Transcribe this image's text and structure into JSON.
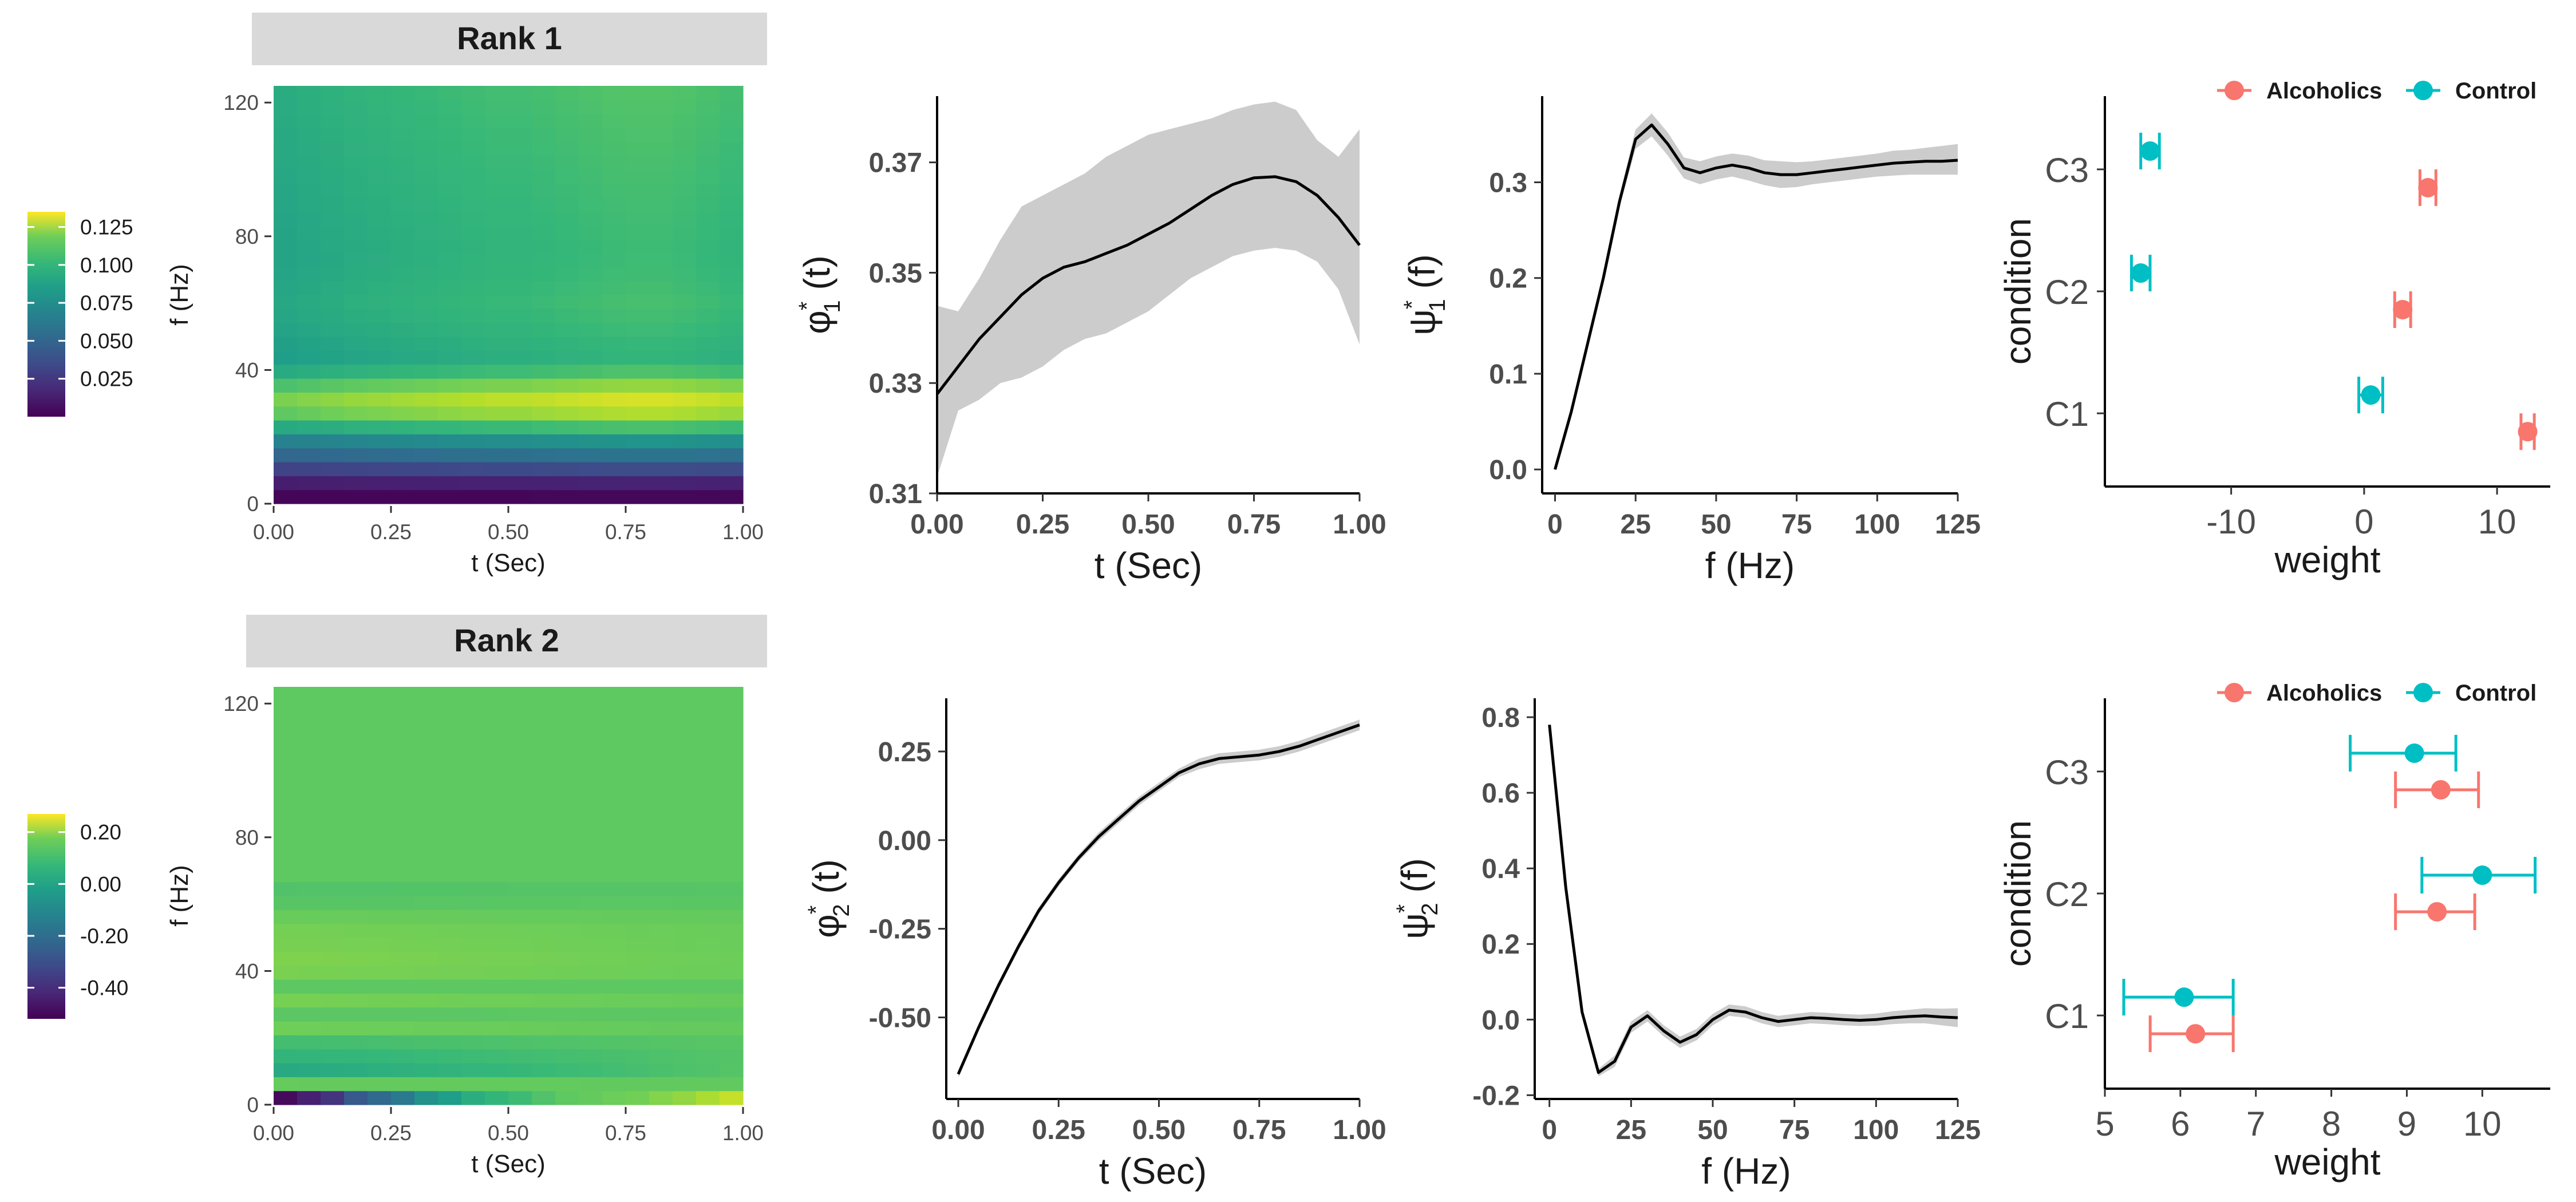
{
  "colors": {
    "alcoholics": "#F8766D",
    "control": "#00BFC4",
    "ribbon": "#cccccc",
    "line": "#000000",
    "strip": "#d9d9d9"
  },
  "chart_data": [
    {
      "type": "heatmap",
      "strip": "Rank 1",
      "xlabel": "t (Sec)",
      "ylabel": "f (Hz)",
      "xlim": [
        0,
        1
      ],
      "ylim": [
        0,
        125
      ],
      "xticks": [
        0,
        0.25,
        0.5,
        0.75,
        1
      ],
      "xtick_labels": [
        "0.00",
        "0.25",
        "0.50",
        "0.75",
        "1.00"
      ],
      "yticks": [
        0,
        40,
        80,
        120
      ],
      "ytick_labels": [
        "0",
        "40",
        "80",
        "120"
      ],
      "colorbar": {
        "min": 0.0,
        "max": 0.135,
        "ticks": [
          0.025,
          0.05,
          0.075,
          0.1,
          0.125
        ],
        "tick_labels": [
          "0.025",
          "0.050",
          "0.075",
          "0.100",
          "0.125"
        ]
      },
      "t_profile": [
        0.85,
        0.865,
        0.88,
        0.895,
        0.905,
        0.915,
        0.925,
        0.935,
        0.945,
        0.955,
        0.965,
        0.975,
        0.985,
        0.995,
        1.0,
        1.0,
        0.99,
        0.975,
        0.96
      ],
      "f_bands": [
        {
          "f": 2,
          "v": 0.002
        },
        {
          "f": 6,
          "v": 0.012
        },
        {
          "f": 10,
          "v": 0.03
        },
        {
          "f": 14,
          "v": 0.05
        },
        {
          "f": 18,
          "v": 0.065
        },
        {
          "f": 22,
          "v": 0.09
        },
        {
          "f": 26,
          "v": 0.115
        },
        {
          "f": 30,
          "v": 0.13
        },
        {
          "f": 34,
          "v": 0.12
        },
        {
          "f": 38,
          "v": 0.1
        },
        {
          "f": 44,
          "v": 0.088
        },
        {
          "f": 52,
          "v": 0.092
        },
        {
          "f": 60,
          "v": 0.095
        },
        {
          "f": 68,
          "v": 0.093
        },
        {
          "f": 76,
          "v": 0.092
        },
        {
          "f": 84,
          "v": 0.093
        },
        {
          "f": 92,
          "v": 0.094
        },
        {
          "f": 100,
          "v": 0.095
        },
        {
          "f": 108,
          "v": 0.096
        },
        {
          "f": 116,
          "v": 0.097
        },
        {
          "f": 122,
          "v": 0.098
        }
      ]
    },
    {
      "type": "line",
      "xlabel": "t (Sec)",
      "ylabel_base": "φ",
      "ylabel_sup": "*",
      "ylabel_sub": "1",
      "ylabel_arg": " (t)",
      "xlim": [
        0,
        1
      ],
      "ylim": [
        0.31,
        0.382
      ],
      "xticks": [
        0,
        0.25,
        0.5,
        0.75,
        1
      ],
      "xtick_labels": [
        "0.00",
        "0.25",
        "0.50",
        "0.75",
        "1.00"
      ],
      "yticks": [
        0.31,
        0.33,
        0.35,
        0.37
      ],
      "ytick_labels": [
        "0.31",
        "0.33",
        "0.35",
        "0.37"
      ],
      "x": [
        0,
        0.05,
        0.1,
        0.15,
        0.2,
        0.25,
        0.3,
        0.35,
        0.4,
        0.45,
        0.5,
        0.55,
        0.6,
        0.65,
        0.7,
        0.75,
        0.8,
        0.85,
        0.9,
        0.95,
        1.0
      ],
      "y": [
        0.328,
        0.333,
        0.338,
        0.342,
        0.346,
        0.349,
        0.351,
        0.352,
        0.3535,
        0.355,
        0.357,
        0.359,
        0.3615,
        0.364,
        0.366,
        0.3672,
        0.3674,
        0.3665,
        0.364,
        0.36,
        0.355
      ],
      "lower": [
        0.313,
        0.325,
        0.327,
        0.33,
        0.331,
        0.333,
        0.336,
        0.338,
        0.339,
        0.341,
        0.343,
        0.346,
        0.349,
        0.351,
        0.353,
        0.354,
        0.3545,
        0.354,
        0.352,
        0.347,
        0.337
      ],
      "upper": [
        0.344,
        0.343,
        0.349,
        0.356,
        0.362,
        0.364,
        0.366,
        0.368,
        0.371,
        0.373,
        0.375,
        0.376,
        0.377,
        0.378,
        0.3795,
        0.3805,
        0.381,
        0.3795,
        0.374,
        0.371,
        0.376
      ]
    },
    {
      "type": "line",
      "xlabel": "f (Hz)",
      "ylabel_base": "ψ",
      "ylabel_sup": "*",
      "ylabel_sub": "1",
      "ylabel_arg": " (f)",
      "xlim": [
        -4,
        125
      ],
      "ylim": [
        -0.025,
        0.39
      ],
      "xticks": [
        0,
        25,
        50,
        75,
        100,
        125
      ],
      "xtick_labels": [
        "0",
        "25",
        "50",
        "75",
        "100",
        "125"
      ],
      "yticks": [
        0,
        0.1,
        0.2,
        0.3
      ],
      "ytick_labels": [
        "0.0",
        "0.1",
        "0.2",
        "0.3"
      ],
      "x": [
        0,
        5,
        10,
        15,
        20,
        25,
        30,
        35,
        40,
        45,
        50,
        55,
        60,
        65,
        70,
        75,
        80,
        85,
        90,
        95,
        100,
        105,
        110,
        115,
        120,
        125
      ],
      "y": [
        0.0,
        0.06,
        0.13,
        0.2,
        0.28,
        0.345,
        0.36,
        0.34,
        0.315,
        0.31,
        0.315,
        0.318,
        0.315,
        0.31,
        0.308,
        0.308,
        0.31,
        0.312,
        0.314,
        0.316,
        0.318,
        0.32,
        0.321,
        0.322,
        0.322,
        0.323
      ],
      "lower": [
        0.0,
        0.056,
        0.125,
        0.195,
        0.274,
        0.335,
        0.348,
        0.328,
        0.304,
        0.298,
        0.303,
        0.306,
        0.302,
        0.297,
        0.294,
        0.295,
        0.298,
        0.3,
        0.302,
        0.304,
        0.306,
        0.307,
        0.308,
        0.308,
        0.308,
        0.308
      ],
      "upper": [
        0.0,
        0.064,
        0.135,
        0.205,
        0.286,
        0.355,
        0.372,
        0.352,
        0.326,
        0.322,
        0.327,
        0.33,
        0.328,
        0.323,
        0.322,
        0.321,
        0.322,
        0.324,
        0.326,
        0.328,
        0.33,
        0.333,
        0.334,
        0.336,
        0.338,
        0.34
      ]
    },
    {
      "type": "scatter",
      "xlabel": "weight",
      "ylabel": "condition",
      "legend": [
        "Alcoholics",
        "Control"
      ],
      "xlim": [
        -19.5,
        14
      ],
      "xticks": [
        -10,
        0,
        10
      ],
      "xtick_labels": [
        "-10",
        "0",
        "10"
      ],
      "categories": [
        "C1",
        "C2",
        "C3"
      ],
      "series": [
        {
          "name": "Alcoholics",
          "points": [
            {
              "cat": "C1",
              "offset": -0.15,
              "x": 12.3,
              "lo": 11.8,
              "hi": 12.8
            },
            {
              "cat": "C2",
              "offset": -0.15,
              "x": 2.9,
              "lo": 2.3,
              "hi": 3.5
            },
            {
              "cat": "C3",
              "offset": -0.15,
              "x": 4.8,
              "lo": 4.2,
              "hi": 5.4
            }
          ]
        },
        {
          "name": "Control",
          "points": [
            {
              "cat": "C1",
              "offset": 0.15,
              "x": 0.5,
              "lo": -0.4,
              "hi": 1.4
            },
            {
              "cat": "C2",
              "offset": 0.15,
              "x": -16.8,
              "lo": -17.5,
              "hi": -16.1
            },
            {
              "cat": "C3",
              "offset": 0.15,
              "x": -16.1,
              "lo": -16.8,
              "hi": -15.4
            }
          ]
        }
      ]
    },
    {
      "type": "heatmap",
      "strip": "Rank 2",
      "xlabel": "t (Sec)",
      "ylabel": "f (Hz)",
      "xlim": [
        0,
        1
      ],
      "ylim": [
        0,
        125
      ],
      "xticks": [
        0,
        0.25,
        0.5,
        0.75,
        1
      ],
      "xtick_labels": [
        "0.00",
        "0.25",
        "0.50",
        "0.75",
        "1.00"
      ],
      "yticks": [
        0,
        40,
        80,
        120
      ],
      "ytick_labels": [
        "0",
        "40",
        "80",
        "120"
      ],
      "colorbar": {
        "min": -0.52,
        "max": 0.27,
        "ticks": [
          -0.4,
          -0.2,
          0.0,
          0.2
        ],
        "tick_labels": [
          "-0.40",
          "-0.20",
          "0.00",
          "0.20"
        ]
      },
      "background": 0.07,
      "bottom_row": [
        -0.5,
        -0.45,
        -0.4,
        -0.3,
        -0.25,
        -0.2,
        -0.12,
        -0.08,
        -0.03,
        0.0,
        0.02,
        0.05,
        0.07,
        0.08,
        0.09,
        0.1,
        0.12,
        0.14,
        0.17,
        0.2
      ],
      "band_offsets": [
        {
          "f": 6,
          "v": 0.02,
          "decay": 0.6
        },
        {
          "f": 10,
          "v": -0.12,
          "decay": 1.0
        },
        {
          "f": 14,
          "v": -0.08,
          "decay": 0.9
        },
        {
          "f": 18,
          "v": -0.06,
          "decay": 0.9
        },
        {
          "f": 22,
          "v": 0.04,
          "decay": 0.8
        },
        {
          "f": 26,
          "v": -0.03,
          "decay": 0.6
        },
        {
          "f": 30,
          "v": 0.06,
          "decay": 0.8
        },
        {
          "f": 34,
          "v": -0.02,
          "decay": 0.5
        },
        {
          "f": 38,
          "v": 0.03,
          "decay": 0.5
        },
        {
          "f": 42,
          "v": 0.05,
          "decay": 0.6
        },
        {
          "f": 46,
          "v": 0.04,
          "decay": 0.6
        },
        {
          "f": 54,
          "v": 0.03,
          "decay": 0.5
        },
        {
          "f": 62,
          "v": -0.02,
          "decay": 0.5
        }
      ]
    },
    {
      "type": "line",
      "xlabel": "t (Sec)",
      "ylabel_base": "φ",
      "ylabel_sup": "*",
      "ylabel_sub": "2",
      "ylabel_arg": " (t)",
      "xlim": [
        -0.03,
        1
      ],
      "ylim": [
        -0.73,
        0.4
      ],
      "xticks": [
        0,
        0.25,
        0.5,
        0.75,
        1
      ],
      "xtick_labels": [
        "0.00",
        "0.25",
        "0.50",
        "0.75",
        "1.00"
      ],
      "yticks": [
        -0.5,
        -0.25,
        0.0,
        0.25
      ],
      "ytick_labels": [
        "-0.50",
        "-0.25",
        "0.00",
        "0.25"
      ],
      "x": [
        0,
        0.05,
        0.1,
        0.15,
        0.2,
        0.25,
        0.3,
        0.35,
        0.4,
        0.45,
        0.5,
        0.55,
        0.6,
        0.65,
        0.7,
        0.75,
        0.8,
        0.85,
        0.9,
        0.95,
        1.0
      ],
      "y": [
        -0.66,
        -0.53,
        -0.41,
        -0.3,
        -0.2,
        -0.12,
        -0.05,
        0.01,
        0.06,
        0.11,
        0.15,
        0.19,
        0.215,
        0.23,
        0.235,
        0.24,
        0.25,
        0.265,
        0.285,
        0.305,
        0.325
      ],
      "lower": [
        -0.67,
        -0.54,
        -0.42,
        -0.31,
        -0.21,
        -0.13,
        -0.06,
        -0.002,
        0.048,
        0.098,
        0.138,
        0.178,
        0.2,
        0.215,
        0.22,
        0.225,
        0.235,
        0.25,
        0.27,
        0.29,
        0.31
      ],
      "upper": [
        -0.65,
        -0.52,
        -0.4,
        -0.29,
        -0.19,
        -0.11,
        -0.04,
        0.022,
        0.072,
        0.122,
        0.162,
        0.202,
        0.23,
        0.245,
        0.25,
        0.255,
        0.265,
        0.28,
        0.3,
        0.32,
        0.34
      ]
    },
    {
      "type": "line",
      "xlabel": "f (Hz)",
      "ylabel_base": "ψ",
      "ylabel_sup": "*",
      "ylabel_sub": "2",
      "ylabel_arg": " (f)",
      "xlim": [
        -4.5,
        125
      ],
      "ylim": [
        -0.21,
        0.85
      ],
      "xticks": [
        0,
        25,
        50,
        75,
        100,
        125
      ],
      "xtick_labels": [
        "0",
        "25",
        "50",
        "75",
        "100",
        "125"
      ],
      "yticks": [
        -0.2,
        0,
        0.2,
        0.4,
        0.6,
        0.8
      ],
      "ytick_labels": [
        "-0.2",
        "0.0",
        "0.2",
        "0.4",
        "0.6",
        "0.8"
      ],
      "x": [
        0,
        5,
        10,
        15,
        20,
        25,
        30,
        35,
        40,
        45,
        50,
        55,
        60,
        65,
        70,
        75,
        80,
        85,
        90,
        95,
        100,
        105,
        110,
        115,
        120,
        125
      ],
      "y": [
        0.78,
        0.35,
        0.02,
        -0.14,
        -0.11,
        -0.02,
        0.01,
        -0.03,
        -0.06,
        -0.04,
        0.0,
        0.025,
        0.02,
        0.005,
        -0.005,
        0.0,
        0.005,
        0.003,
        0.0,
        -0.002,
        0.0,
        0.005,
        0.008,
        0.01,
        0.007,
        0.005
      ],
      "lower": [
        0.78,
        0.34,
        0.01,
        -0.15,
        -0.125,
        -0.035,
        -0.005,
        -0.045,
        -0.075,
        -0.055,
        -0.015,
        0.01,
        0.005,
        -0.01,
        -0.02,
        -0.015,
        -0.01,
        -0.012,
        -0.015,
        -0.017,
        -0.016,
        -0.012,
        -0.01,
        -0.01,
        -0.015,
        -0.02
      ],
      "upper": [
        0.78,
        0.36,
        0.03,
        -0.13,
        -0.095,
        -0.005,
        0.025,
        -0.015,
        -0.045,
        -0.025,
        0.015,
        0.04,
        0.035,
        0.02,
        0.01,
        0.015,
        0.02,
        0.018,
        0.015,
        0.013,
        0.016,
        0.022,
        0.026,
        0.03,
        0.029,
        0.03
      ]
    },
    {
      "type": "scatter",
      "xlabel": "weight",
      "ylabel": "condition",
      "legend": [
        "Alcoholics",
        "Control"
      ],
      "xlim": [
        5,
        10.9
      ],
      "xticks": [
        5,
        6,
        7,
        8,
        9,
        10
      ],
      "xtick_labels": [
        "5",
        "6",
        "7",
        "8",
        "9",
        "10"
      ],
      "categories": [
        "C1",
        "C2",
        "C3"
      ],
      "series": [
        {
          "name": "Alcoholics",
          "points": [
            {
              "cat": "C1",
              "offset": -0.15,
              "x": 6.2,
              "lo": 5.6,
              "hi": 6.7
            },
            {
              "cat": "C2",
              "offset": -0.15,
              "x": 9.4,
              "lo": 8.85,
              "hi": 9.9
            },
            {
              "cat": "C3",
              "offset": -0.15,
              "x": 9.45,
              "lo": 8.85,
              "hi": 9.95
            }
          ]
        },
        {
          "name": "Control",
          "points": [
            {
              "cat": "C1",
              "offset": 0.15,
              "x": 6.05,
              "lo": 5.25,
              "hi": 6.7
            },
            {
              "cat": "C2",
              "offset": 0.15,
              "x": 10.0,
              "lo": 9.2,
              "hi": 10.7
            },
            {
              "cat": "C3",
              "offset": 0.15,
              "x": 9.1,
              "lo": 8.25,
              "hi": 9.65
            }
          ]
        }
      ]
    }
  ]
}
